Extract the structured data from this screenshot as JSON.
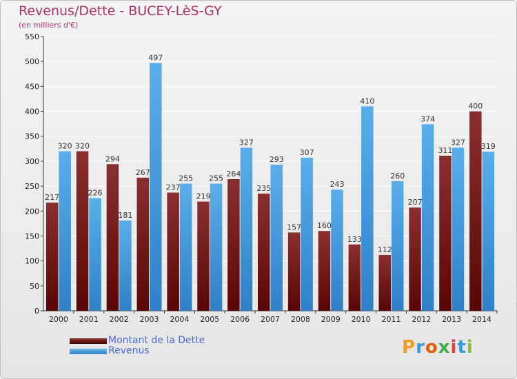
{
  "title": "Revenus/Dette - BUCEY-LèS-GY",
  "subtitle": "(en milliers d'€)",
  "legend": [
    {
      "label": "Montant de la Dette",
      "color": "#6e0f0f"
    },
    {
      "label": "Revenus",
      "color": "#3e96de"
    }
  ],
  "logo": {
    "letters": [
      "P",
      "r",
      "o",
      "x",
      "i",
      "t",
      "i"
    ],
    "colors": [
      "#f0a020",
      "#3a9be0",
      "#e06010",
      "#3cb043",
      "#e04040",
      "#3a9be0",
      "#8fbf30"
    ]
  },
  "colors": {
    "dette_top": "#8a2f2f",
    "dette_bottom": "#5a0505",
    "revenus_top": "#5aaeea",
    "revenus_bottom": "#2f80c8",
    "grid": "#ffffff",
    "axis": "#333333"
  },
  "chart_data": {
    "type": "bar",
    "categories": [
      "2000",
      "2001",
      "2002",
      "2003",
      "2004",
      "2005",
      "2006",
      "2007",
      "2008",
      "2009",
      "2010",
      "2011",
      "2012",
      "2013",
      "2014"
    ],
    "series": [
      {
        "name": "Montant de la Dette",
        "values": [
          217,
          320,
          294,
          267,
          237,
          219,
          264,
          235,
          157,
          160,
          133,
          112,
          207,
          311,
          400
        ]
      },
      {
        "name": "Revenus",
        "values": [
          320,
          226,
          181,
          497,
          255,
          255,
          327,
          293,
          307,
          243,
          410,
          260,
          374,
          327,
          319
        ]
      }
    ],
    "y_ticks": [
      "0",
      "50",
      "100",
      "150",
      "200",
      "250",
      "300",
      "350",
      "400",
      "450",
      "500",
      "550"
    ],
    "ylim": [
      0,
      550
    ],
    "grid": true,
    "legend_position": "bottom-left"
  }
}
